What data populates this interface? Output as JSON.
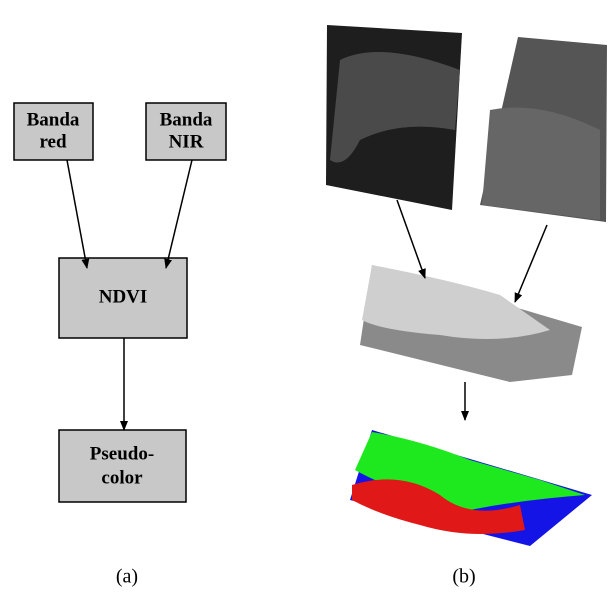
{
  "nodes": [
    {
      "lines": [
        "Banda",
        "red"
      ]
    },
    {
      "lines": [
        "Banda",
        "NIR"
      ]
    },
    {
      "lines": [
        "NDVI"
      ]
    },
    {
      "lines": [
        "Pseudo-",
        "color"
      ]
    }
  ],
  "captions": [
    "(a)",
    "(b)"
  ]
}
